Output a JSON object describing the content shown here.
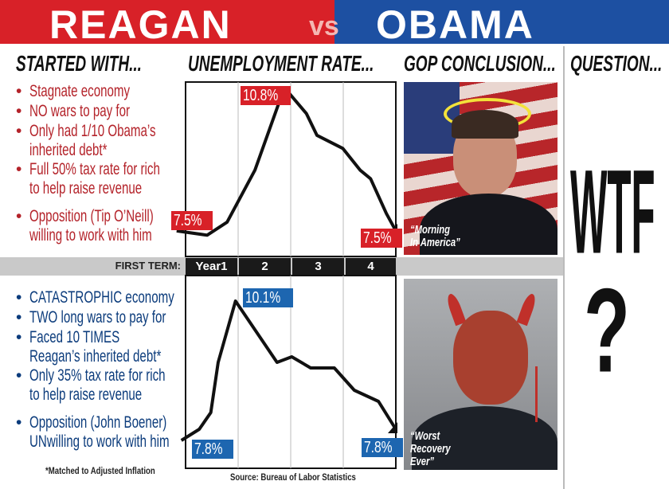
{
  "header": {
    "left": "REAGAN",
    "vs": "vs",
    "right": "OBAMA",
    "left_color": "#d82128",
    "right_color": "#1d50a2"
  },
  "columns": {
    "started": "STARTED WITH...",
    "rate": "UNEMPLOYMENT RATE...",
    "gop": "GOP CONCLUSION...",
    "question": "QUESTION..."
  },
  "reagan": {
    "bullets": [
      [
        "Stagnate economy"
      ],
      [
        "NO wars to pay for"
      ],
      [
        "Only had 1/10 Obama’s",
        "inherited debt*"
      ],
      [
        "Full 50% tax rate for rich",
        "to help raise revenue"
      ],
      [
        "Opposition (Tip O’Neill)",
        "willing to work with him"
      ]
    ],
    "caption": [
      "“Morning",
      "In America”"
    ]
  },
  "obama": {
    "bullets": [
      [
        "CATASTROPHIC economy"
      ],
      [
        "TWO long wars to pay for"
      ],
      [
        "Faced 10 TIMES",
        "Reagan’s inherited debt*"
      ],
      [
        "Only 35% tax rate for rich",
        "to help raise revenue"
      ],
      [
        "Opposition (John Boener)",
        "UNwilling to work with him"
      ]
    ],
    "caption": [
      "“Worst",
      "Recovery",
      "Ever”"
    ]
  },
  "term": {
    "label": "FIRST TERM:",
    "years": [
      "Year1",
      "2",
      "3",
      "4"
    ]
  },
  "footnote": "*Matched to Adjusted Inflation",
  "source": "Source: Bureau of Labor Statistics",
  "question": {
    "text": "WTF",
    "mark": "?"
  },
  "chart_data": [
    {
      "type": "line",
      "color": "#111111",
      "x_label": "FIRST TERM",
      "xlim": [
        0,
        4
      ],
      "labels": {
        "start": "7.5%",
        "peak": "10.8%",
        "end": "7.5%"
      },
      "points": [
        [
          -0.17,
          7.5
        ],
        [
          0.41,
          7.4
        ],
        [
          0.79,
          7.7
        ],
        [
          1.32,
          8.9
        ],
        [
          1.88,
          10.8
        ],
        [
          2.3,
          10.2
        ],
        [
          2.5,
          9.7
        ],
        [
          2.99,
          9.4
        ],
        [
          3.32,
          8.9
        ],
        [
          3.52,
          8.7
        ],
        [
          3.82,
          7.9
        ],
        [
          4.0,
          7.5
        ]
      ]
    },
    {
      "type": "line",
      "color": "#111111",
      "x_label": "FIRST TERM",
      "xlim": [
        0,
        4
      ],
      "labels": {
        "start": "7.8%",
        "peak": "10.1%",
        "end": "7.8%"
      },
      "points": [
        [
          -0.08,
          7.6
        ],
        [
          0.26,
          7.8
        ],
        [
          0.48,
          8.1
        ],
        [
          0.62,
          9.0
        ],
        [
          0.95,
          10.1
        ],
        [
          1.74,
          9.0
        ],
        [
          2.02,
          9.1
        ],
        [
          2.38,
          8.9
        ],
        [
          2.83,
          8.9
        ],
        [
          3.21,
          8.5
        ],
        [
          3.67,
          8.3
        ],
        [
          4.0,
          7.8
        ]
      ]
    }
  ]
}
